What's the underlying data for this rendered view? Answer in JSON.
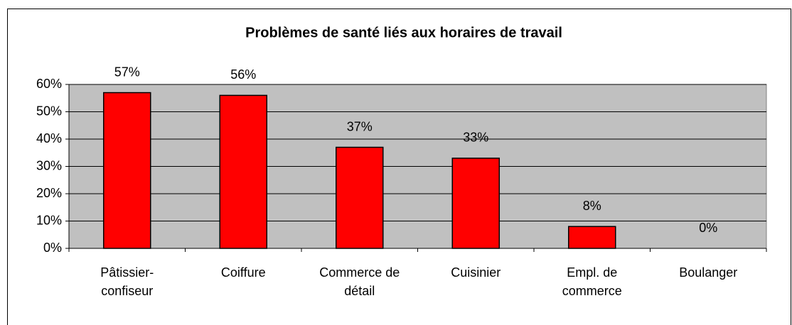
{
  "chart_data": {
    "type": "bar",
    "title": "Problèmes de santé liés aux horaires de travail",
    "categories": [
      "Pâtissier-confiseur",
      "Coiffure",
      "Commerce de détail",
      "Cuisinier",
      "Empl. de commerce",
      "Boulanger"
    ],
    "values": [
      57,
      56,
      37,
      33,
      8,
      0
    ],
    "value_labels": [
      "57%",
      "56%",
      "37%",
      "33%",
      "8%",
      "0%"
    ],
    "color": "#ff0000",
    "ylim": [
      0,
      60
    ],
    "yticks": [
      {
        "value": 0,
        "label": "0%"
      },
      {
        "value": 10,
        "label": "10%"
      },
      {
        "value": 20,
        "label": "20%"
      },
      {
        "value": 30,
        "label": "30%"
      },
      {
        "value": 40,
        "label": "40%"
      },
      {
        "value": 50,
        "label": "50%"
      },
      {
        "value": 60,
        "label": "60%"
      }
    ],
    "grid": true
  }
}
